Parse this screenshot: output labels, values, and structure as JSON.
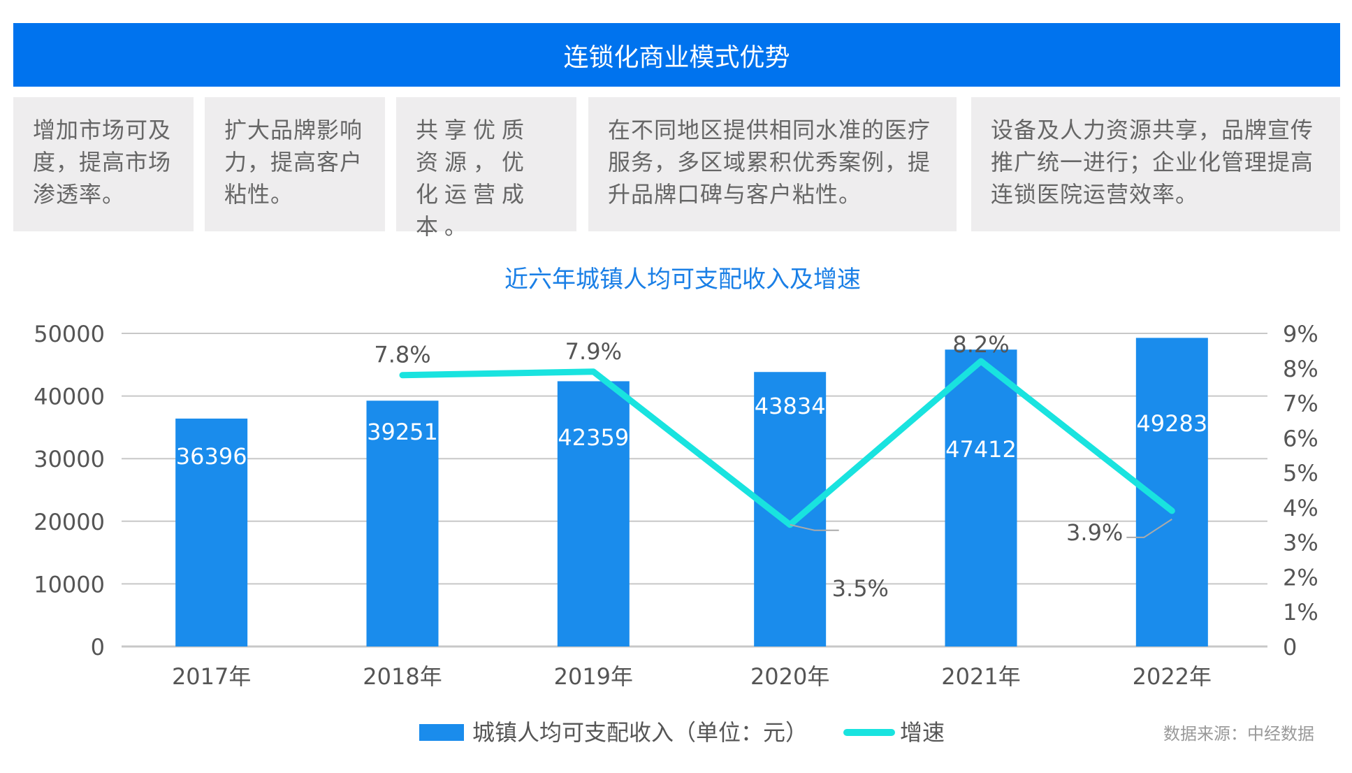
{
  "header": {
    "title": "连锁化商业模式优势"
  },
  "advantages": [
    "增加市场可及度，提高市场渗透率。",
    "扩大品牌影响力，提高客户粘性。",
    "共享优质资源，优化运营成本。",
    "在不同地区提供相同水准的医疗服务，多区域累积优秀案例，提升品牌口碑与客户粘性。",
    "设备及人力资源共享，品牌宣传推广统一进行；企业化管理提高连锁医院运营效率。"
  ],
  "chart_data": {
    "type": "bar",
    "title": "近六年城镇人均可支配收入及增速",
    "categories": [
      "2017年",
      "2018年",
      "2019年",
      "2020年",
      "2021年",
      "2022年"
    ],
    "series": [
      {
        "name": "城镇人均可支配收入（单位：元）",
        "type": "bar",
        "axis": "left",
        "color": "#1a8cec",
        "values": [
          36396,
          39251,
          42359,
          43834,
          47412,
          49283
        ],
        "labels": [
          "36396",
          "39251",
          "42359",
          "43834",
          "47412",
          "49283"
        ]
      },
      {
        "name": "增速",
        "type": "line",
        "axis": "right",
        "color": "#19e3df",
        "values": [
          null,
          7.8,
          7.9,
          3.5,
          8.2,
          3.9
        ],
        "labels": [
          "",
          "7.8%",
          "7.9%",
          "3.5%",
          "8.2%",
          "3.9%"
        ]
      }
    ],
    "y_left": {
      "range": [
        0,
        50000
      ],
      "ticks": [
        "0",
        "10000",
        "20000",
        "30000",
        "40000",
        "50000"
      ]
    },
    "y_right": {
      "range": [
        0,
        9
      ],
      "ticks": [
        "0",
        "1%",
        "2%",
        "3%",
        "4%",
        "5%",
        "6%",
        "7%",
        "8%",
        "9%"
      ]
    },
    "grid": true,
    "legend": "bottom-center"
  },
  "source": "数据来源：中经数据"
}
